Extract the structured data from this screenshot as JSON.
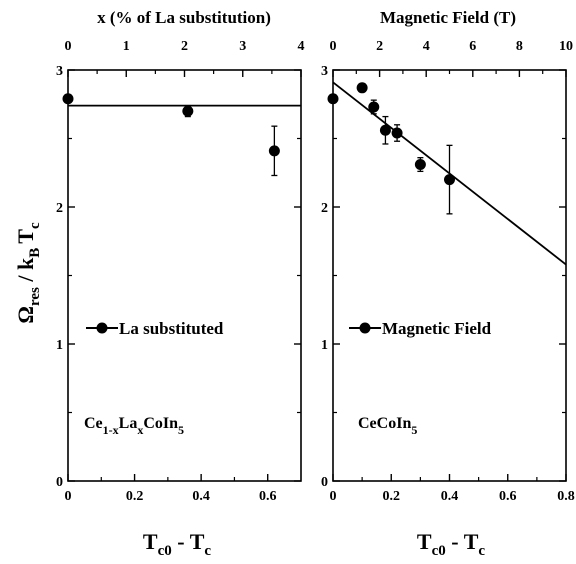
{
  "chart_data": [
    {
      "type": "scatter",
      "panel": "left",
      "xlabel": "T_c0 - T_c",
      "top_xlabel": "x (% of La substitution)",
      "ylabel": "Ω_res / k_B T_c",
      "xlim": [
        0,
        0.7
      ],
      "top_xlim": [
        0,
        4
      ],
      "ylim": [
        0,
        3
      ],
      "x_ticks": [
        "0",
        "0.2",
        "0.4",
        "0.6"
      ],
      "top_x_ticks": [
        "0",
        "1",
        "2",
        "3",
        "4"
      ],
      "y_ticks": [
        "0",
        "1",
        "2",
        "3"
      ],
      "series": [
        {
          "name": "La substituted",
          "x": [
            0.0,
            0.36,
            0.62
          ],
          "y": [
            2.79,
            2.7,
            2.41
          ],
          "yerr": [
            0.0,
            0.04,
            0.18
          ]
        }
      ],
      "fit_line": {
        "x": [
          0,
          0.7
        ],
        "y": [
          2.74,
          2.74
        ]
      },
      "annotation": {
        "parts": [
          "Ce",
          "1-x",
          "La",
          "x",
          "CoIn",
          "5"
        ]
      },
      "legend_position": "left-middle",
      "grid": false
    },
    {
      "type": "scatter",
      "panel": "right",
      "xlabel": "T_c0 - T_c",
      "top_xlabel": "Magnetic Field (T)",
      "xlim": [
        0,
        0.8
      ],
      "top_xlim": [
        0,
        10
      ],
      "ylim": [
        0,
        3
      ],
      "x_ticks": [
        "0",
        "0.2",
        "0.4",
        "0.6",
        "0.8"
      ],
      "top_x_ticks": [
        "0",
        "2",
        "4",
        "6",
        "8",
        "10"
      ],
      "y_ticks": [
        "0",
        "1",
        "2",
        "3"
      ],
      "series": [
        {
          "name": "Magnetic Field",
          "x": [
            0.0,
            0.1,
            0.14,
            0.18,
            0.22,
            0.3,
            0.4
          ],
          "y": [
            2.79,
            2.87,
            2.73,
            2.56,
            2.54,
            2.31,
            2.2
          ],
          "yerr": [
            0.0,
            0.0,
            0.05,
            0.1,
            0.06,
            0.05,
            0.25
          ]
        }
      ],
      "fit_line": {
        "x": [
          0,
          0.8
        ],
        "y": [
          2.91,
          1.58
        ]
      },
      "annotation": {
        "parts": [
          "CeCoIn",
          "5"
        ]
      },
      "legend_position": "left-middle",
      "grid": false
    }
  ],
  "labels": {
    "left_top_title": "x (% of La substitution)",
    "right_top_title": "Magnetic Field (T)",
    "y_main": "Ω",
    "y_sub1": "res",
    "y_mid": " / k",
    "y_sub2": "B",
    "y_end": "T",
    "y_sub3": "c",
    "x_main": "T",
    "x_sub1": "c0",
    "x_mid": " - T",
    "x_sub2": "c",
    "left_legend": "La substituted",
    "right_legend": "Magnetic Field",
    "left_comp": {
      "a": "Ce",
      "b": "1-x",
      "c": "La",
      "d": "x",
      "e": "CoIn",
      "f": "5"
    },
    "right_comp": {
      "a": "CeCoIn",
      "b": "5"
    }
  }
}
